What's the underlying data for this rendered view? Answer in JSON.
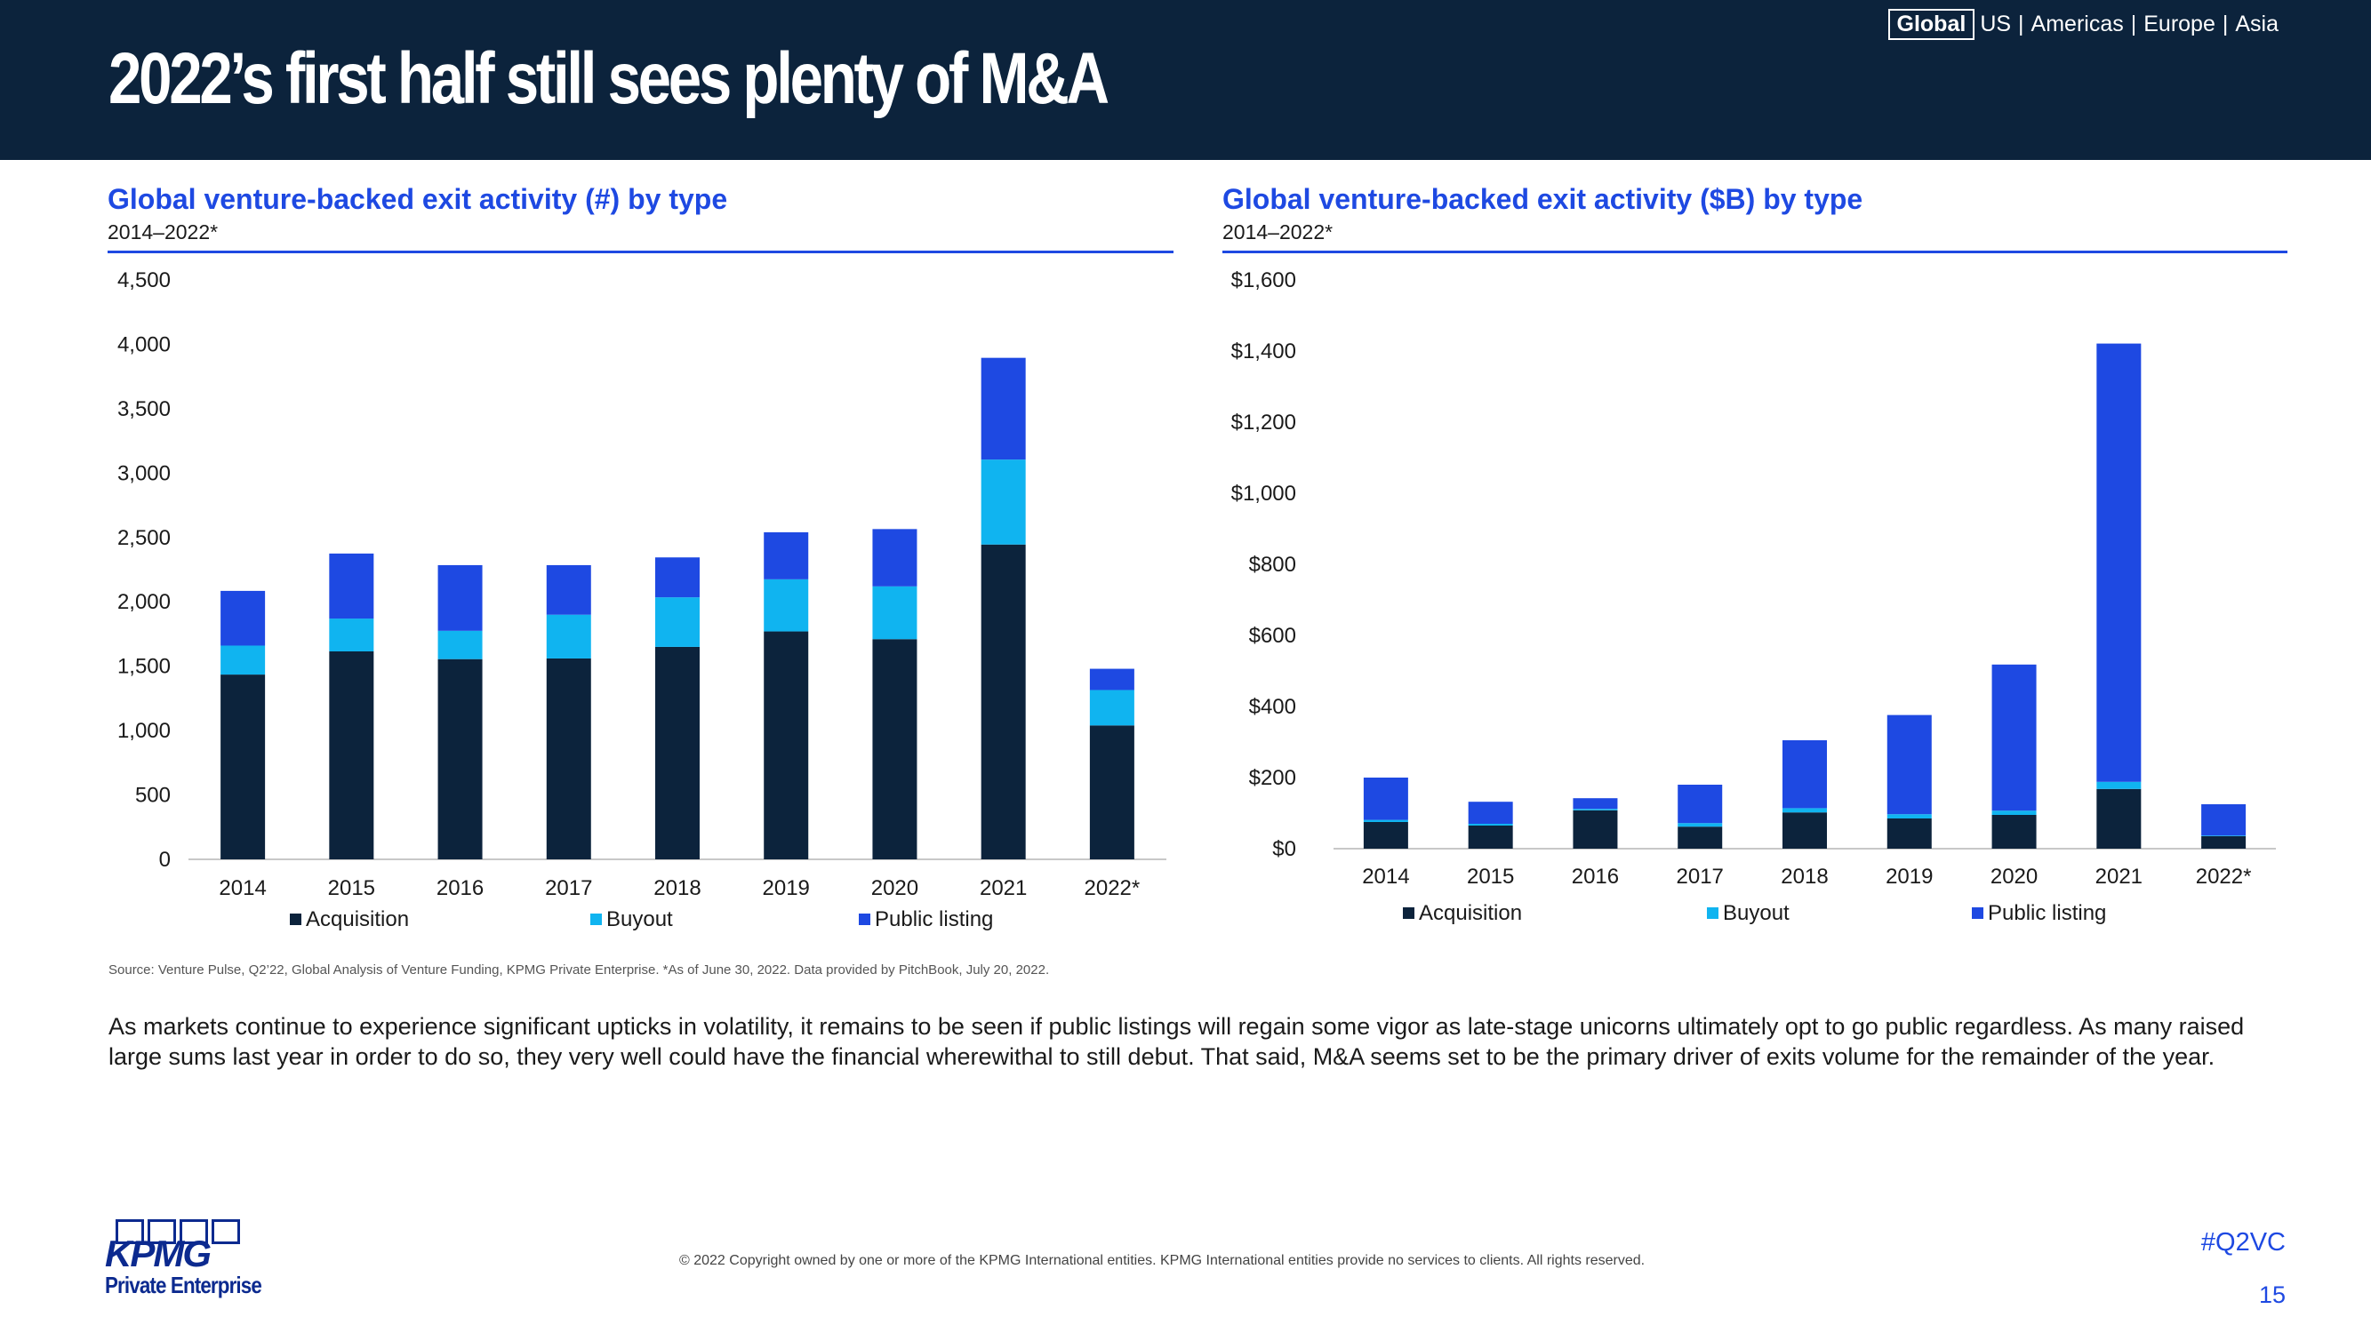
{
  "header": {
    "title": "2022’s first half still sees plenty of M&A",
    "nav": {
      "active": "Global",
      "items": [
        "US",
        "Americas",
        "Europe",
        "Asia"
      ],
      "separator": "|"
    }
  },
  "colors": {
    "acquisition": "#0c233c",
    "buyout": "#10b4f0",
    "public_listing": "#1e49e2",
    "axis": "#c8c8c8"
  },
  "chart_data": [
    {
      "id": "count",
      "type": "bar",
      "stacked": true,
      "title": "Global venture-backed exit activity (#) by type",
      "subtitle": "2014–2022*",
      "categories": [
        "2014",
        "2015",
        "2016",
        "2017",
        "2018",
        "2019",
        "2020",
        "2021",
        "2022*"
      ],
      "series": [
        {
          "name": "Acquisition",
          "values": [
            1435,
            1615,
            1555,
            1560,
            1650,
            1770,
            1710,
            2445,
            1040
          ]
        },
        {
          "name": "Buyout",
          "values": [
            225,
            255,
            220,
            340,
            385,
            405,
            410,
            660,
            275
          ]
        },
        {
          "name": "Public listing",
          "values": [
            425,
            505,
            510,
            385,
            310,
            365,
            445,
            790,
            165
          ]
        }
      ],
      "ylim": [
        0,
        4500
      ],
      "yticks": [
        0,
        500,
        1000,
        1500,
        2000,
        2500,
        3000,
        3500,
        4000,
        4500
      ],
      "ytick_labels": [
        "0",
        "500",
        "1,000",
        "1,500",
        "2,000",
        "2,500",
        "3,000",
        "3,500",
        "4,000",
        "4,500"
      ],
      "legend": [
        "Acquisition",
        "Buyout",
        "Public listing"
      ],
      "legend_position": "bottom"
    },
    {
      "id": "value",
      "type": "bar",
      "stacked": true,
      "title": "Global venture-backed exit activity ($B) by type",
      "subtitle": "2014–2022*",
      "categories": [
        "2014",
        "2015",
        "2016",
        "2017",
        "2018",
        "2019",
        "2020",
        "2021",
        "2022*"
      ],
      "series": [
        {
          "name": "Acquisition",
          "values": [
            75,
            65,
            108,
            62,
            102,
            85,
            95,
            168,
            35
          ]
        },
        {
          "name": "Buyout",
          "values": [
            6,
            5,
            4,
            10,
            12,
            12,
            12,
            20,
            2
          ]
        },
        {
          "name": "Public listing",
          "values": [
            119,
            62,
            30,
            108,
            191,
            279,
            411,
            1233,
            88
          ]
        }
      ],
      "ylim": [
        0,
        1600
      ],
      "yticks": [
        0,
        200,
        400,
        600,
        800,
        1000,
        1200,
        1400,
        1600
      ],
      "ytick_labels": [
        "$0",
        "$200",
        "$400",
        "$600",
        "$800",
        "$1,000",
        "$1,200",
        "$1,400",
        "$1,600"
      ],
      "legend": [
        "Acquisition",
        "Buyout",
        "Public listing"
      ],
      "legend_position": "bottom"
    }
  ],
  "source": "Source: Venture Pulse, Q2’22, Global Analysis of Venture Funding, KPMG Private Enterprise. *As of June 30, 2022. Data provided by PitchBook, July 20, 2022.",
  "body": "As markets continue to experience significant upticks in volatility, it remains to be seen if public listings will regain some vigor as late-stage unicorns ultimately opt to go public regardless. As many raised large sums last year in order to do so, they very well could have the financial wherewithal to still debut. That said, M&A seems set to be the primary driver of exits volume for the remainder of the year.",
  "footer": {
    "logo_word": "KPMG",
    "logo_tagline": "Private Enterprise",
    "copyright": "© 2022 Copyright owned by one or more of the KPMG International entities. KPMG International entities provide no services to clients. All rights reserved.",
    "hashtag": "#Q2VC",
    "page_number": "15"
  }
}
